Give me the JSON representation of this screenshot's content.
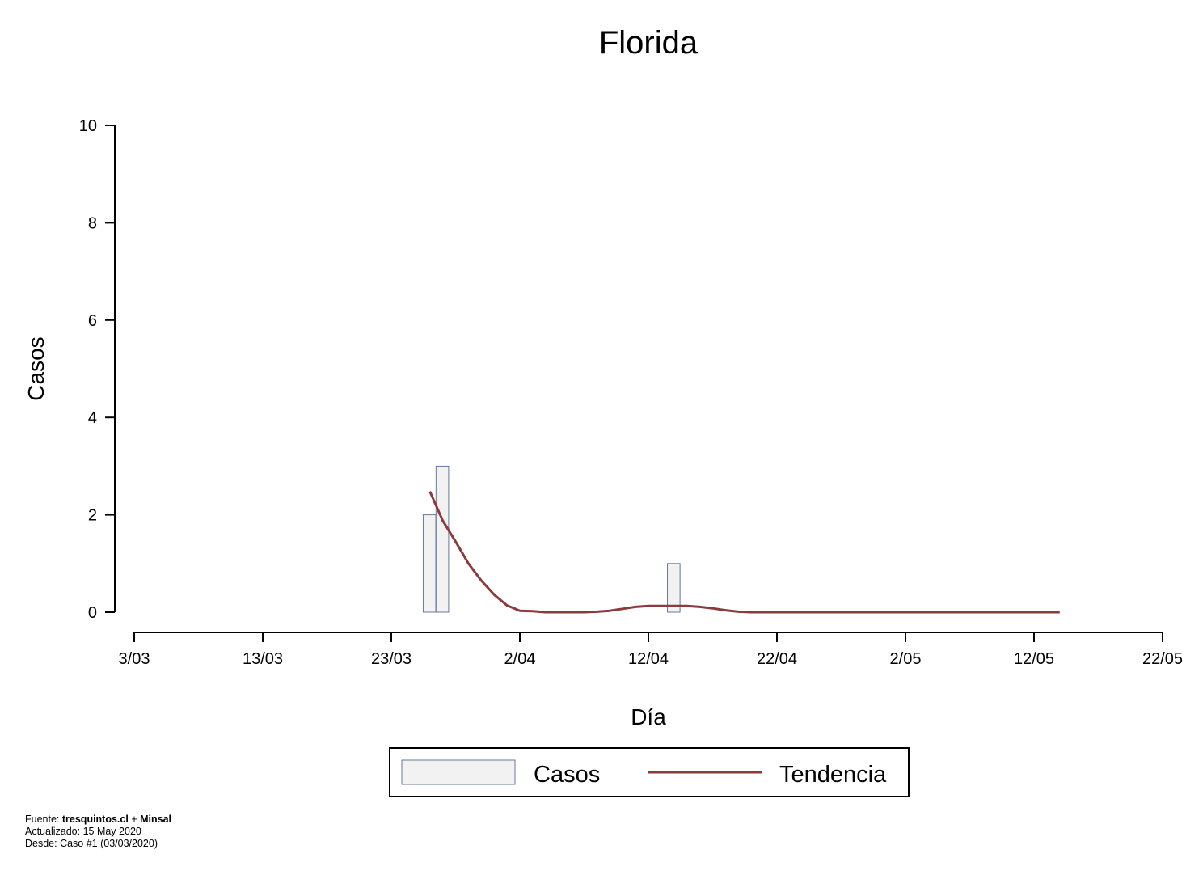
{
  "chart_data": {
    "type": "bar",
    "title": "Florida",
    "xlabel": "Día",
    "ylabel": "Casos",
    "x_ticks": [
      "3/03",
      "13/03",
      "23/03",
      "2/04",
      "12/04",
      "22/04",
      "2/05",
      "12/05",
      "22/05"
    ],
    "y_ticks": [
      "0",
      "2",
      "4",
      "6",
      "8",
      "10"
    ],
    "ylim": [
      0,
      10
    ],
    "xlim_days_range": [
      "2020-03-03",
      "2020-05-22"
    ],
    "series": [
      {
        "name": "Casos",
        "kind": "bar",
        "points": [
          {
            "x": "2020-03-26",
            "y": 2
          },
          {
            "x": "2020-03-27",
            "y": 3
          },
          {
            "x": "2020-04-14",
            "y": 1
          }
        ]
      },
      {
        "name": "Tendencia",
        "kind": "line",
        "points": [
          {
            "x": "2020-03-26",
            "y": 2.48
          },
          {
            "x": "2020-03-27",
            "y": 1.88
          },
          {
            "x": "2020-03-28",
            "y": 1.45
          },
          {
            "x": "2020-03-29",
            "y": 1.0
          },
          {
            "x": "2020-03-30",
            "y": 0.65
          },
          {
            "x": "2020-03-31",
            "y": 0.36
          },
          {
            "x": "2020-04-01",
            "y": 0.14
          },
          {
            "x": "2020-04-02",
            "y": 0.03
          },
          {
            "x": "2020-04-03",
            "y": 0.02
          },
          {
            "x": "2020-04-04",
            "y": 0.0
          },
          {
            "x": "2020-04-05",
            "y": 0.0
          },
          {
            "x": "2020-04-06",
            "y": 0.0
          },
          {
            "x": "2020-04-07",
            "y": 0.0
          },
          {
            "x": "2020-04-08",
            "y": 0.01
          },
          {
            "x": "2020-04-09",
            "y": 0.03
          },
          {
            "x": "2020-04-10",
            "y": 0.07
          },
          {
            "x": "2020-04-11",
            "y": 0.11
          },
          {
            "x": "2020-04-12",
            "y": 0.13
          },
          {
            "x": "2020-04-13",
            "y": 0.13
          },
          {
            "x": "2020-04-14",
            "y": 0.13
          },
          {
            "x": "2020-04-15",
            "y": 0.13
          },
          {
            "x": "2020-04-16",
            "y": 0.11
          },
          {
            "x": "2020-04-17",
            "y": 0.08
          },
          {
            "x": "2020-04-18",
            "y": 0.04
          },
          {
            "x": "2020-04-19",
            "y": 0.01
          },
          {
            "x": "2020-04-20",
            "y": 0.0
          },
          {
            "x": "2020-04-25",
            "y": 0.0
          },
          {
            "x": "2020-05-01",
            "y": 0.0
          },
          {
            "x": "2020-05-07",
            "y": 0.0
          },
          {
            "x": "2020-05-14",
            "y": 0.0
          }
        ]
      }
    ],
    "legend_placement": "bottom-center",
    "grid": false,
    "colors": {
      "bar_fill": "#f2f2f2",
      "bar_stroke": "#6677a0",
      "trend_line": "#8b3a3e"
    }
  },
  "legend": {
    "casos_label": "Casos",
    "tendencia_label": "Tendencia"
  },
  "footer": {
    "fuente_label": "Fuente:",
    "fuente_site": "tresquintos.cl",
    "fuente_plus": "+",
    "fuente_org": "Minsal",
    "actualizado": "Actualizado: 15 May 2020",
    "desde": "Desde: Caso #1  (03/03/2020)"
  }
}
